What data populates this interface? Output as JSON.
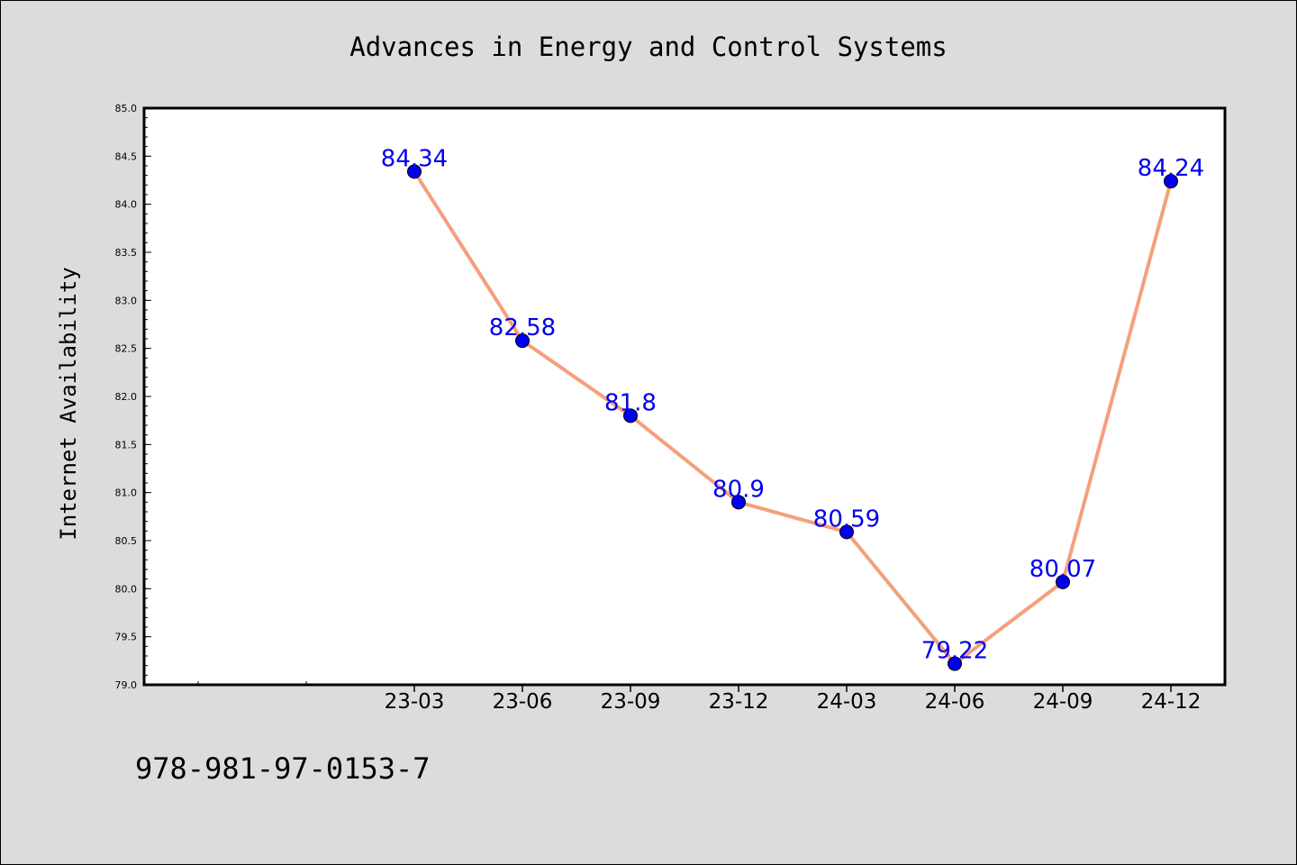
{
  "chart_data": {
    "type": "line",
    "title": "Advances in Energy and Control Systems",
    "xlabel": "",
    "ylabel": "Internet Availability",
    "categories": [
      "23-03",
      "23-06",
      "23-09",
      "23-12",
      "24-03",
      "24-06",
      "24-09",
      "24-12"
    ],
    "series": [
      {
        "values": [
          84.34,
          82.58,
          81.8,
          80.9,
          80.59,
          79.22,
          80.07,
          84.24
        ],
        "data_labels": [
          "84.34",
          "82.58",
          "81.8",
          "80.9",
          "80.59",
          "79.22",
          "80.07",
          "84.24"
        ],
        "line_color": "#f4a07c",
        "marker_color": "#0000ee"
      }
    ],
    "ylim": [
      79.0,
      85.0
    ],
    "yticks": [
      "79.0",
      "79.5",
      "80.0",
      "80.5",
      "81.0",
      "81.5",
      "82.0",
      "82.5",
      "83.0",
      "83.5",
      "84.0",
      "84.5",
      "85.0"
    ],
    "grid": false,
    "legend": "none"
  },
  "footer_text": "978-981-97-0153-7",
  "colors": {
    "background": "#dcdcdc",
    "plot_background": "#ffffff",
    "label_color": "#0000ee"
  }
}
